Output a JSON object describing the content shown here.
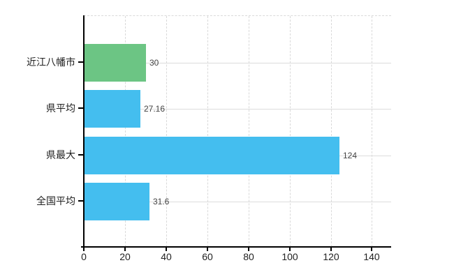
{
  "chart_data": {
    "type": "bar",
    "orientation": "horizontal",
    "title": "",
    "xlabel": "",
    "ylabel": "",
    "categories": [
      "近江八幡市",
      "県平均",
      "県最大",
      "全国平均"
    ],
    "values": [
      30,
      27.16,
      124,
      31.6
    ],
    "value_labels": [
      "30",
      "27.16",
      "124",
      "31.6"
    ],
    "bar_colors": [
      "#6CC584",
      "#44BEEF",
      "#44BEEF",
      "#44BEEF"
    ],
    "x_ticks": [
      0,
      20,
      40,
      60,
      80,
      100,
      120,
      140
    ],
    "xlim": [
      0,
      149
    ],
    "grid": true,
    "legend": false
  },
  "colors": {
    "bar_blue": "#44BEEF",
    "bar_green": "#6CC584",
    "grid_line": "#D9D9D9",
    "axis_line": "#000000",
    "category_text": "#222222",
    "value_text": "#444444",
    "background": "#FFFFFF"
  }
}
